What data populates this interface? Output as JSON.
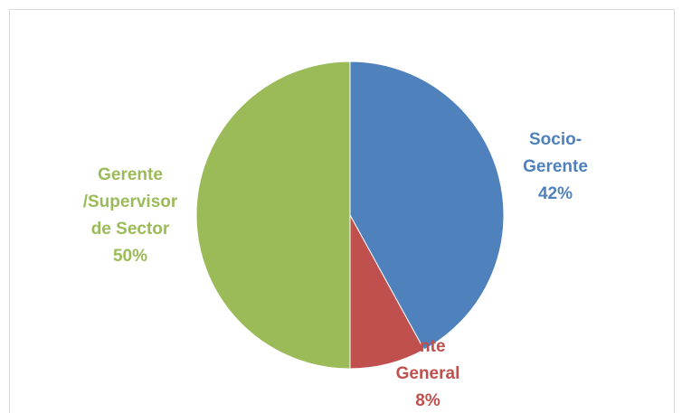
{
  "chart_data": {
    "type": "pie",
    "title": "",
    "slices": [
      {
        "label_lines": [
          "Socio-",
          "Gerente"
        ],
        "percent_label": "42%",
        "value": 42,
        "color": "#4f81bd"
      },
      {
        "label_lines": [
          "ente",
          "General"
        ],
        "percent_label": "8%",
        "value": 8,
        "color": "#c0504d"
      },
      {
        "label_lines": [
          "Gerente",
          "/Supervisor",
          "de Sector"
        ],
        "percent_label": "50%",
        "value": 50,
        "color": "#9bbb59"
      }
    ],
    "legend": "none",
    "data_labels": "outside"
  }
}
